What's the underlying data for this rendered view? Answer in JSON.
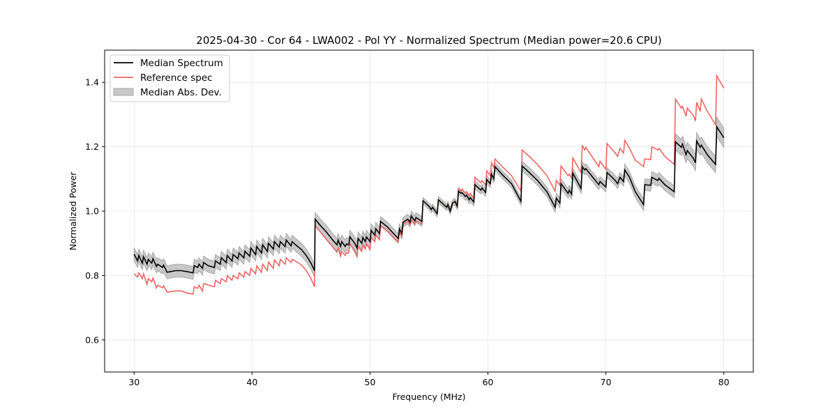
{
  "chart_data": {
    "type": "line",
    "title": "2025-04-30 - Cor 64 - LWA002 - Pol YY - Normalized Spectrum (Median power=20.6 CPU)",
    "xlabel": "Frequency (MHz)",
    "ylabel": "Normalized Power",
    "xlim": [
      27.5,
      82.5
    ],
    "ylim": [
      0.5,
      1.5
    ],
    "xticks": [
      30,
      40,
      50,
      60,
      70,
      80
    ],
    "yticks": [
      0.6,
      0.8,
      1.0,
      1.2,
      1.4
    ],
    "xtick_labels": [
      "30",
      "40",
      "50",
      "60",
      "70",
      "80"
    ],
    "ytick_labels": [
      "0.6",
      "0.8",
      "1.0",
      "1.2",
      "1.4"
    ],
    "grid": true,
    "legend": {
      "placement": "top-left",
      "entries": [
        {
          "label": "Median Spectrum",
          "color": "#000000",
          "kind": "line"
        },
        {
          "label": "Reference spec",
          "color": "#f06464",
          "kind": "line"
        },
        {
          "label": "Median Abs. Dev.",
          "color": "#c8c8c8",
          "kind": "patch"
        }
      ]
    },
    "series": [
      {
        "name": "Median Spectrum",
        "color": "#000000"
      },
      {
        "name": "Reference spec",
        "color": "#f06464"
      },
      {
        "name": "Median Abs. Dev.",
        "color": "#c8c8c8"
      }
    ],
    "columns": [
      "freq_mhz",
      "median",
      "reference",
      "mad"
    ],
    "points": [
      [
        30.0,
        0.866,
        0.805,
        0.02
      ],
      [
        30.3,
        0.845,
        0.795,
        0.02
      ],
      [
        30.4,
        0.862,
        0.808,
        0.02
      ],
      [
        30.7,
        0.838,
        0.79,
        0.02
      ],
      [
        30.8,
        0.858,
        0.805,
        0.02
      ],
      [
        31.1,
        0.835,
        0.772,
        0.02
      ],
      [
        31.2,
        0.85,
        0.79,
        0.02
      ],
      [
        31.5,
        0.838,
        0.78,
        0.02
      ],
      [
        31.6,
        0.852,
        0.792,
        0.02
      ],
      [
        31.9,
        0.828,
        0.762,
        0.02
      ],
      [
        32.0,
        0.835,
        0.77,
        0.02
      ],
      [
        32.4,
        0.825,
        0.762,
        0.02
      ],
      [
        32.5,
        0.832,
        0.768,
        0.02
      ],
      [
        32.8,
        0.81,
        0.748,
        0.02
      ],
      [
        33.5,
        0.815,
        0.752,
        0.02
      ],
      [
        34.0,
        0.815,
        0.752,
        0.02
      ],
      [
        34.5,
        0.812,
        0.745,
        0.02
      ],
      [
        35.0,
        0.808,
        0.742,
        0.02
      ],
      [
        35.1,
        0.83,
        0.765,
        0.02
      ],
      [
        35.4,
        0.825,
        0.76,
        0.02
      ],
      [
        35.5,
        0.835,
        0.77,
        0.02
      ],
      [
        35.8,
        0.822,
        0.752,
        0.02
      ],
      [
        35.9,
        0.84,
        0.775,
        0.02
      ],
      [
        36.3,
        0.83,
        0.77,
        0.02
      ],
      [
        36.8,
        0.825,
        0.765,
        0.02
      ],
      [
        36.9,
        0.845,
        0.785,
        0.02
      ],
      [
        37.3,
        0.835,
        0.775,
        0.02
      ],
      [
        37.4,
        0.855,
        0.79,
        0.02
      ],
      [
        37.8,
        0.84,
        0.78,
        0.02
      ],
      [
        37.9,
        0.862,
        0.8,
        0.02
      ],
      [
        38.3,
        0.845,
        0.785,
        0.02
      ],
      [
        38.4,
        0.865,
        0.8,
        0.02
      ],
      [
        38.8,
        0.852,
        0.79,
        0.02
      ],
      [
        38.9,
        0.87,
        0.808,
        0.02
      ],
      [
        39.3,
        0.855,
        0.795,
        0.02
      ],
      [
        39.4,
        0.875,
        0.812,
        0.02
      ],
      [
        39.8,
        0.86,
        0.8,
        0.02
      ],
      [
        39.9,
        0.885,
        0.822,
        0.02
      ],
      [
        40.3,
        0.865,
        0.805,
        0.02
      ],
      [
        40.4,
        0.89,
        0.83,
        0.02
      ],
      [
        40.8,
        0.87,
        0.81,
        0.02
      ],
      [
        40.9,
        0.895,
        0.835,
        0.02
      ],
      [
        41.3,
        0.875,
        0.815,
        0.02
      ],
      [
        41.4,
        0.9,
        0.842,
        0.02
      ],
      [
        41.8,
        0.882,
        0.822,
        0.02
      ],
      [
        41.9,
        0.905,
        0.848,
        0.02
      ],
      [
        42.3,
        0.888,
        0.83,
        0.02
      ],
      [
        42.4,
        0.905,
        0.85,
        0.02
      ],
      [
        42.8,
        0.89,
        0.835,
        0.02
      ],
      [
        42.9,
        0.91,
        0.855,
        0.02
      ],
      [
        43.3,
        0.892,
        0.84,
        0.02
      ],
      [
        43.4,
        0.905,
        0.85,
        0.02
      ],
      [
        43.8,
        0.892,
        0.842,
        0.02
      ],
      [
        44.2,
        0.88,
        0.832,
        0.02
      ],
      [
        44.6,
        0.862,
        0.815,
        0.02
      ],
      [
        45.0,
        0.838,
        0.79,
        0.02
      ],
      [
        45.3,
        0.815,
        0.765,
        0.02
      ],
      [
        45.35,
        0.975,
        0.955,
        0.02
      ],
      [
        45.8,
        0.955,
        0.935,
        0.02
      ],
      [
        46.3,
        0.935,
        0.912,
        0.02
      ],
      [
        46.8,
        0.912,
        0.89,
        0.02
      ],
      [
        47.2,
        0.895,
        0.872,
        0.02
      ],
      [
        47.3,
        0.91,
        0.885,
        0.02
      ],
      [
        47.5,
        0.89,
        0.86,
        0.02
      ],
      [
        47.6,
        0.905,
        0.875,
        0.02
      ],
      [
        47.9,
        0.89,
        0.862,
        0.02
      ],
      [
        48.0,
        0.898,
        0.87,
        0.02
      ],
      [
        48.2,
        0.895,
        0.87,
        0.02
      ],
      [
        48.3,
        0.92,
        0.898,
        0.02
      ],
      [
        48.7,
        0.9,
        0.875,
        0.02
      ],
      [
        48.9,
        0.885,
        0.858,
        0.02
      ],
      [
        49.0,
        0.915,
        0.89,
        0.02
      ],
      [
        49.3,
        0.9,
        0.875,
        0.02
      ],
      [
        49.4,
        0.918,
        0.895,
        0.02
      ],
      [
        49.6,
        0.905,
        0.882,
        0.02
      ],
      [
        49.7,
        0.92,
        0.898,
        0.02
      ],
      [
        50.0,
        0.905,
        0.88,
        0.02
      ],
      [
        50.1,
        0.94,
        0.918,
        0.02
      ],
      [
        50.4,
        0.925,
        0.905,
        0.02
      ],
      [
        50.5,
        0.945,
        0.925,
        0.02
      ],
      [
        50.8,
        0.93,
        0.912,
        0.02
      ],
      [
        50.9,
        0.968,
        0.955,
        0.015
      ],
      [
        51.5,
        0.95,
        0.938,
        0.015
      ],
      [
        52.0,
        0.93,
        0.918,
        0.015
      ],
      [
        52.4,
        0.915,
        0.905,
        0.015
      ],
      [
        52.5,
        0.945,
        0.935,
        0.015
      ],
      [
        52.7,
        0.93,
        0.92,
        0.015
      ],
      [
        52.8,
        0.965,
        0.958,
        0.015
      ],
      [
        53.2,
        0.975,
        0.968,
        0.015
      ],
      [
        53.4,
        0.965,
        0.958,
        0.015
      ],
      [
        53.5,
        0.985,
        0.975,
        0.015
      ],
      [
        53.8,
        0.97,
        0.96,
        0.015
      ],
      [
        53.9,
        0.98,
        0.97,
        0.015
      ],
      [
        54.4,
        0.968,
        0.96,
        0.015
      ],
      [
        54.5,
        1.032,
        1.032,
        0.01
      ],
      [
        55.0,
        1.015,
        1.015,
        0.01
      ],
      [
        55.2,
        1.005,
        1.005,
        0.01
      ],
      [
        55.3,
        1.012,
        1.012,
        0.01
      ],
      [
        55.7,
        0.992,
        0.992,
        0.01
      ],
      [
        55.8,
        1.035,
        1.035,
        0.01
      ],
      [
        56.5,
        1.012,
        1.012,
        0.01
      ],
      [
        56.6,
        1.02,
        1.02,
        0.01
      ],
      [
        56.8,
        1.0,
        1.0,
        0.01
      ],
      [
        57.0,
        1.025,
        1.025,
        0.01
      ],
      [
        57.2,
        1.03,
        1.03,
        0.01
      ],
      [
        57.4,
        1.015,
        1.015,
        0.01
      ],
      [
        57.5,
        1.062,
        1.07,
        0.01
      ],
      [
        57.7,
        1.055,
        1.062,
        0.01
      ],
      [
        57.8,
        1.058,
        1.068,
        0.012
      ],
      [
        58.1,
        1.045,
        1.055,
        0.012
      ],
      [
        58.2,
        1.05,
        1.06,
        0.012
      ],
      [
        58.4,
        1.035,
        1.048,
        0.012
      ],
      [
        58.5,
        1.042,
        1.055,
        0.012
      ],
      [
        58.8,
        1.028,
        1.04,
        0.012
      ],
      [
        58.9,
        1.082,
        1.105,
        0.012
      ],
      [
        59.4,
        1.065,
        1.088,
        0.012
      ],
      [
        59.5,
        1.072,
        1.095,
        0.012
      ],
      [
        59.8,
        1.058,
        1.08,
        0.012
      ],
      [
        59.9,
        1.098,
        1.125,
        0.012
      ],
      [
        60.2,
        1.085,
        1.11,
        0.012
      ],
      [
        60.3,
        1.115,
        1.15,
        0.012
      ],
      [
        60.5,
        1.1,
        1.135,
        0.012
      ],
      [
        60.6,
        1.138,
        1.162,
        0.012
      ],
      [
        61.3,
        1.11,
        1.135,
        0.012
      ],
      [
        62.0,
        1.085,
        1.11,
        0.012
      ],
      [
        62.8,
        1.03,
        1.062,
        0.012
      ],
      [
        62.9,
        1.14,
        1.19,
        0.015
      ],
      [
        63.5,
        1.12,
        1.17,
        0.015
      ],
      [
        64.2,
        1.095,
        1.145,
        0.015
      ],
      [
        65.0,
        1.06,
        1.11,
        0.015
      ],
      [
        65.7,
        1.012,
        1.062,
        0.015
      ],
      [
        65.8,
        1.04,
        1.095,
        0.015
      ],
      [
        66.1,
        1.025,
        1.08,
        0.015
      ],
      [
        66.2,
        1.085,
        1.14,
        0.015
      ],
      [
        66.8,
        1.055,
        1.11,
        0.015
      ],
      [
        66.9,
        1.065,
        1.115,
        0.015
      ],
      [
        67.1,
        1.052,
        1.102,
        0.015
      ],
      [
        67.2,
        1.118,
        1.165,
        0.015
      ],
      [
        67.9,
        1.07,
        1.12,
        0.015
      ],
      [
        68.0,
        1.138,
        1.205,
        0.015
      ],
      [
        68.2,
        1.128,
        1.19,
        0.015
      ],
      [
        68.3,
        1.132,
        1.198,
        0.015
      ],
      [
        69.0,
        1.1,
        1.16,
        0.015
      ],
      [
        69.4,
        1.082,
        1.138,
        0.015
      ],
      [
        69.5,
        1.092,
        1.155,
        0.015
      ],
      [
        70.0,
        1.075,
        1.13,
        0.015
      ],
      [
        70.1,
        1.12,
        1.21,
        0.015
      ],
      [
        70.8,
        1.095,
        1.18,
        0.015
      ],
      [
        71.0,
        1.085,
        1.17,
        0.015
      ],
      [
        71.2,
        1.105,
        1.195,
        0.015
      ],
      [
        71.5,
        1.092,
        1.18,
        0.015
      ],
      [
        71.6,
        1.128,
        1.22,
        0.018
      ],
      [
        72.0,
        1.105,
        1.195,
        0.018
      ],
      [
        72.5,
        1.06,
        1.158,
        0.018
      ],
      [
        73.2,
        1.02,
        1.138,
        0.018
      ],
      [
        73.3,
        1.082,
        1.162,
        0.018
      ],
      [
        73.8,
        1.08,
        1.16,
        0.018
      ],
      [
        73.9,
        1.105,
        1.2,
        0.018
      ],
      [
        74.4,
        1.095,
        1.19,
        0.018
      ],
      [
        74.5,
        1.102,
        1.195,
        0.018
      ],
      [
        75.0,
        1.082,
        1.17,
        0.018
      ],
      [
        75.8,
        1.06,
        1.145,
        0.018
      ],
      [
        75.9,
        1.215,
        1.348,
        0.025
      ],
      [
        76.4,
        1.198,
        1.32,
        0.025
      ],
      [
        76.5,
        1.208,
        1.325,
        0.025
      ],
      [
        76.8,
        1.175,
        1.295,
        0.025
      ],
      [
        76.9,
        1.188,
        1.32,
        0.025
      ],
      [
        77.4,
        1.165,
        1.298,
        0.025
      ],
      [
        77.6,
        1.15,
        1.28,
        0.025
      ],
      [
        77.7,
        1.218,
        1.338,
        0.025
      ],
      [
        78.0,
        1.198,
        1.31,
        0.025
      ],
      [
        78.1,
        1.205,
        1.348,
        0.025
      ],
      [
        78.6,
        1.175,
        1.31,
        0.025
      ],
      [
        79.3,
        1.145,
        1.268,
        0.025
      ],
      [
        79.4,
        1.262,
        1.42,
        0.03
      ],
      [
        80.0,
        1.228,
        1.382,
        0.03
      ]
    ]
  }
}
